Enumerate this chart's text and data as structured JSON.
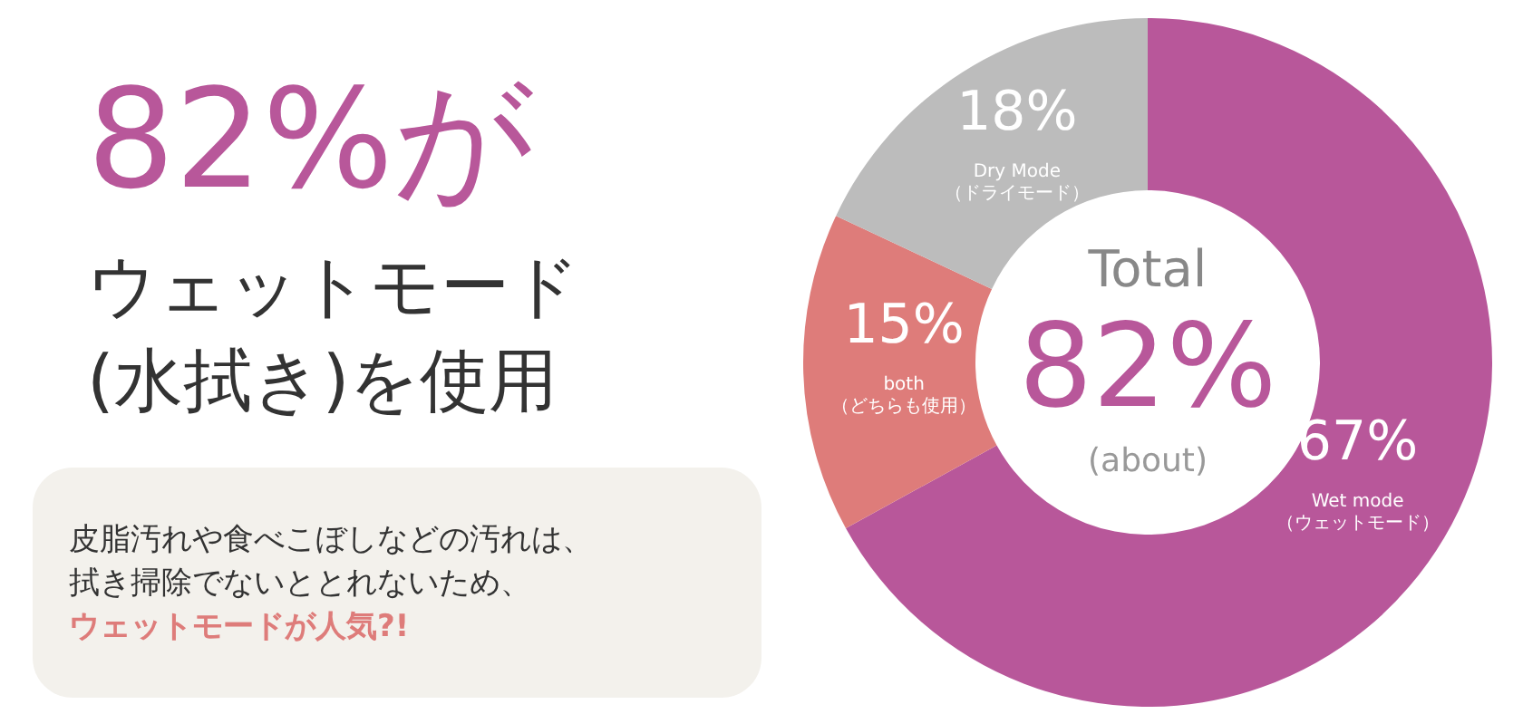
{
  "chart_data": {
    "type": "donut",
    "title": "82%がウェットモード(水拭き)を使用",
    "categories": [
      "Wet mode\n（ウェットモード）",
      "both\n（どちらも使用）",
      "Dry Mode\n（ドライモード）"
    ],
    "values": [
      67,
      15,
      18
    ],
    "colors": [
      "#b8579a",
      "#de7c7a",
      "#bcbcbc"
    ],
    "value_labels": [
      "67%",
      "15%",
      "18%"
    ],
    "annotations": [
      "Total",
      "82%",
      "(about)",
      "皮脂汚れや食べこぼしなどの汚れは、",
      "拭き掃除でないととれないため、",
      "ウェットモードが人気?!"
    ]
  }
}
